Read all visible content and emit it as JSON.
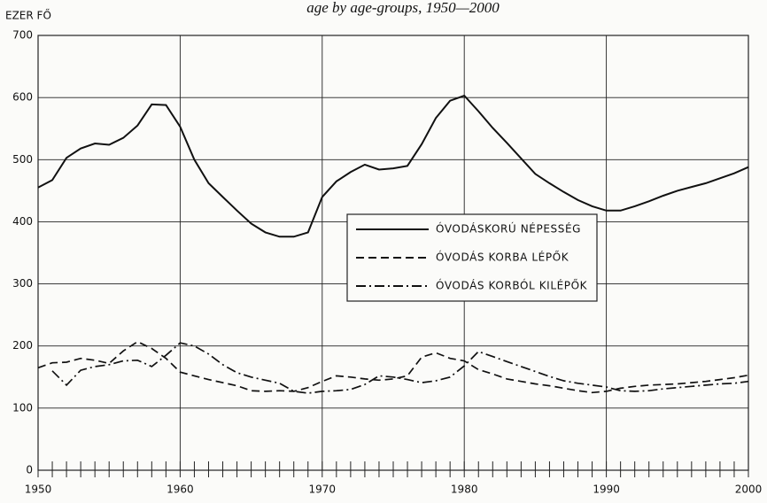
{
  "chart_data": {
    "type": "line",
    "title": "age by age-groups, 1950—2000",
    "y_label": "EZER FŐ",
    "x": [
      1950,
      1951,
      1952,
      1953,
      1954,
      1955,
      1956,
      1957,
      1958,
      1959,
      1960,
      1961,
      1962,
      1963,
      1964,
      1965,
      1966,
      1967,
      1968,
      1969,
      1970,
      1971,
      1972,
      1973,
      1974,
      1975,
      1976,
      1977,
      1978,
      1979,
      1980,
      1981,
      1982,
      1983,
      1984,
      1985,
      1986,
      1987,
      1988,
      1989,
      1990,
      1991,
      1992,
      1993,
      1994,
      1995,
      1996,
      1997,
      1998,
      1999,
      2000
    ],
    "series": [
      {
        "name": "ÓVODÁSKORÚ NÉPESSÉG",
        "color": "#111111",
        "style": "solid",
        "values": [
          455,
          467,
          503,
          518,
          526,
          524,
          535,
          555,
          589,
          588,
          553,
          500,
          462,
          440,
          418,
          397,
          383,
          376,
          376,
          383,
          440,
          465,
          480,
          492,
          484,
          486,
          490,
          525,
          567,
          595,
          603,
          578,
          551,
          527,
          502,
          477,
          462,
          448,
          435,
          425,
          418,
          418,
          425,
          433,
          442,
          450,
          456,
          462,
          470,
          478,
          488
        ]
      },
      {
        "name": "ÓVODÁS KORBA LÉPŐK",
        "color": "#111111",
        "style": "dashed",
        "values": [
          165,
          173,
          174,
          180,
          177,
          172,
          192,
          207,
          196,
          180,
          158,
          152,
          146,
          141,
          136,
          128,
          127,
          128,
          127,
          133,
          143,
          152,
          150,
          147,
          145,
          147,
          152,
          182,
          189,
          180,
          176,
          162,
          155,
          147,
          143,
          139,
          136,
          132,
          128,
          125,
          127,
          132,
          135,
          137,
          138,
          139,
          141,
          143,
          146,
          149,
          153
        ]
      },
      {
        "name": "ÓVODÁS KORBÓL KILÉPŐK",
        "color": "#111111",
        "style": "dashdot",
        "values": [
          null,
          160,
          137,
          161,
          167,
          170,
          176,
          177,
          167,
          185,
          205,
          200,
          187,
          170,
          157,
          150,
          145,
          140,
          127,
          124,
          127,
          128,
          130,
          138,
          152,
          150,
          146,
          141,
          144,
          150,
          168,
          191,
          183,
          175,
          167,
          159,
          151,
          144,
          140,
          137,
          134,
          128,
          127,
          128,
          131,
          133,
          135,
          137,
          139,
          140,
          143
        ]
      }
    ],
    "xlim": [
      1950,
      2000
    ],
    "xticks": [
      1950,
      1960,
      1970,
      1980,
      1990,
      2000
    ],
    "ylim": [
      0,
      700
    ],
    "yticks": [
      0,
      100,
      200,
      300,
      400,
      500,
      600,
      700
    ],
    "grid": true,
    "legend": "center"
  }
}
